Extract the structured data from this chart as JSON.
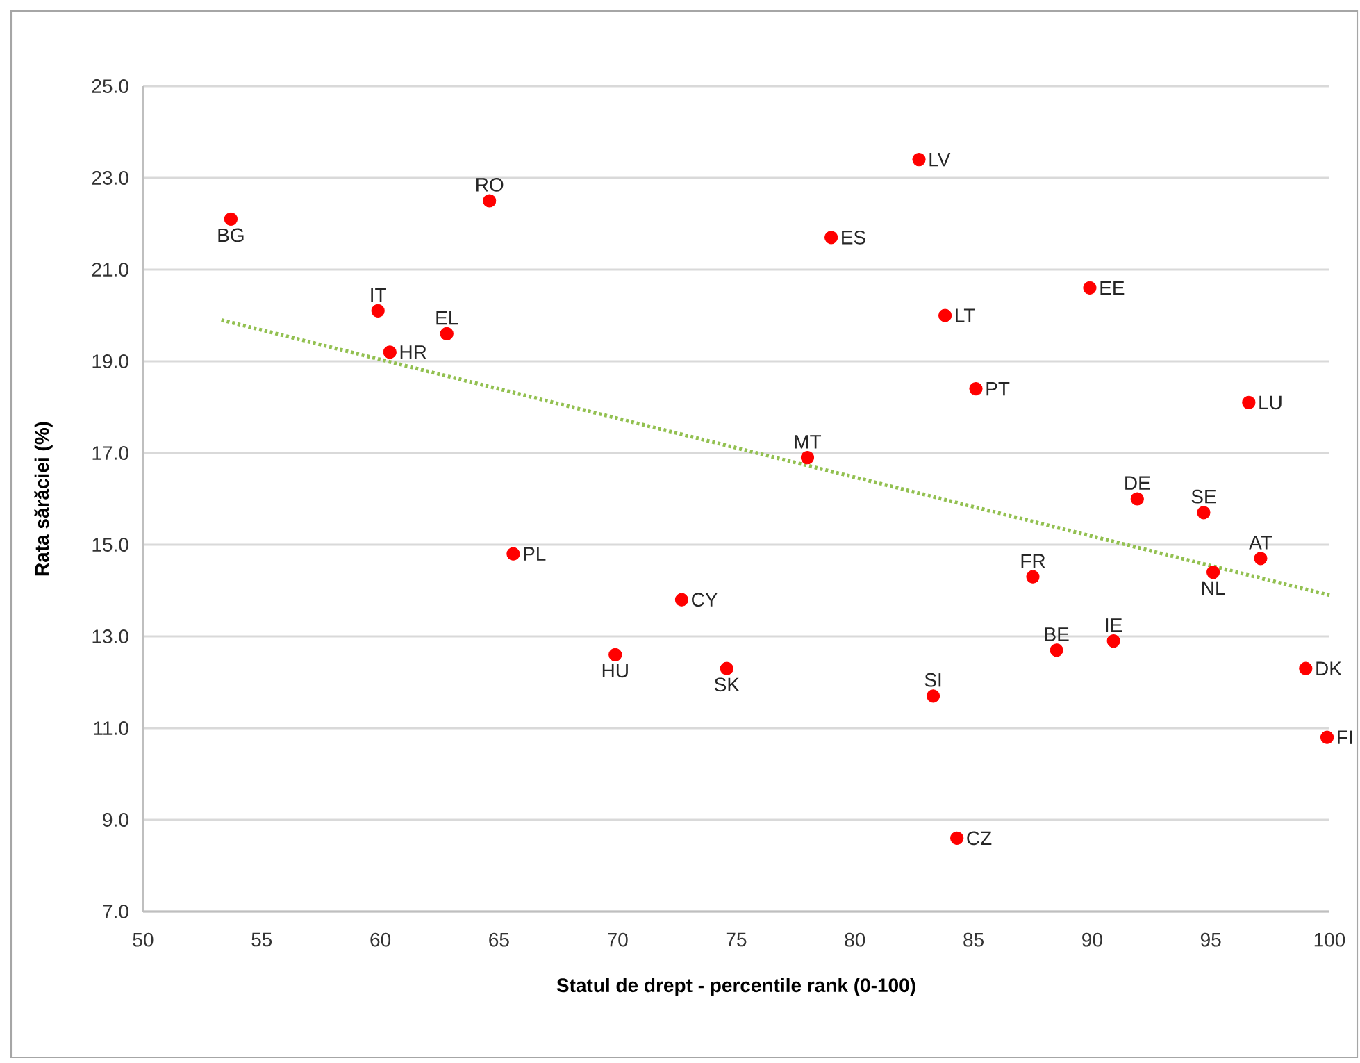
{
  "chart_data": {
    "type": "scatter",
    "xlabel": "Statul de drept - percentile rank (0-100)",
    "ylabel": "Rata sărăciei (%)",
    "xlim": [
      50,
      100
    ],
    "ylim": [
      7,
      25
    ],
    "xticks": [
      50,
      55,
      60,
      65,
      70,
      75,
      80,
      85,
      90,
      95,
      100
    ],
    "yticks": [
      {
        "value": 7,
        "label": "7.0"
      },
      {
        "value": 9,
        "label": "9.0"
      },
      {
        "value": 11,
        "label": "11.0"
      },
      {
        "value": 13,
        "label": "13.0"
      },
      {
        "value": 15,
        "label": "15.0"
      },
      {
        "value": 17,
        "label": "17.0"
      },
      {
        "value": 19,
        "label": "19.0"
      },
      {
        "value": 21,
        "label": "21.0"
      },
      {
        "value": 23,
        "label": "23.0"
      },
      {
        "value": 25,
        "label": "25.0"
      }
    ],
    "grid": "y",
    "series": [
      {
        "marker": "circle",
        "color": "#ff0000",
        "x": [
          53.7,
          64.6,
          59.9,
          60.4,
          62.8,
          65.6,
          69.9,
          72.7,
          74.6,
          78.0,
          79.0,
          82.7,
          83.8,
          83.3,
          84.3,
          85.1,
          87.5,
          88.5,
          89.9,
          90.9,
          91.9,
          94.7,
          95.1,
          96.6,
          97.1,
          99.0,
          99.9
        ],
        "values": [
          22.1,
          22.5,
          20.1,
          19.2,
          19.6,
          14.8,
          12.6,
          13.8,
          12.3,
          16.9,
          21.7,
          23.4,
          20.0,
          11.7,
          8.6,
          18.4,
          14.3,
          12.7,
          20.6,
          12.9,
          16.0,
          15.7,
          14.4,
          18.1,
          14.7,
          12.3,
          10.8
        ]
      },
      {
        "type": "line",
        "marker": "none",
        "color": "#92c050",
        "line_style": "dotted",
        "x": [
          53.3,
          100
        ],
        "values": [
          19.9,
          13.9
        ]
      }
    ],
    "annotations": [
      {
        "text": "BG",
        "x": 53.7,
        "y": 22.1
      },
      {
        "text": "RO",
        "x": 64.6,
        "y": 22.5
      },
      {
        "text": "IT",
        "x": 59.9,
        "y": 20.1
      },
      {
        "text": "HR",
        "x": 60.4,
        "y": 19.2
      },
      {
        "text": "EL",
        "x": 62.8,
        "y": 19.6
      },
      {
        "text": "PL",
        "x": 65.6,
        "y": 14.8
      },
      {
        "text": "HU",
        "x": 69.9,
        "y": 12.6
      },
      {
        "text": "CY",
        "x": 72.7,
        "y": 13.8
      },
      {
        "text": "SK",
        "x": 74.6,
        "y": 12.3
      },
      {
        "text": "MT",
        "x": 78.0,
        "y": 16.9
      },
      {
        "text": "ES",
        "x": 79.0,
        "y": 21.7
      },
      {
        "text": "LV",
        "x": 82.7,
        "y": 23.4
      },
      {
        "text": "LT",
        "x": 83.8,
        "y": 20.0
      },
      {
        "text": "SI",
        "x": 83.3,
        "y": 11.7
      },
      {
        "text": "CZ",
        "x": 84.3,
        "y": 8.6
      },
      {
        "text": "PT",
        "x": 85.1,
        "y": 18.4
      },
      {
        "text": "FR",
        "x": 87.5,
        "y": 14.3
      },
      {
        "text": "BE",
        "x": 88.5,
        "y": 12.7
      },
      {
        "text": "EE",
        "x": 89.9,
        "y": 20.6
      },
      {
        "text": "IE",
        "x": 90.9,
        "y": 12.9
      },
      {
        "text": "DE",
        "x": 91.9,
        "y": 16.0
      },
      {
        "text": "SE",
        "x": 94.7,
        "y": 15.7
      },
      {
        "text": "NL",
        "x": 95.1,
        "y": 14.4
      },
      {
        "text": "LU",
        "x": 96.6,
        "y": 18.1
      },
      {
        "text": "AT",
        "x": 97.1,
        "y": 14.7
      },
      {
        "text": "DK",
        "x": 99.0,
        "y": 12.3
      },
      {
        "text": "FI",
        "x": 99.9,
        "y": 10.8
      }
    ]
  }
}
